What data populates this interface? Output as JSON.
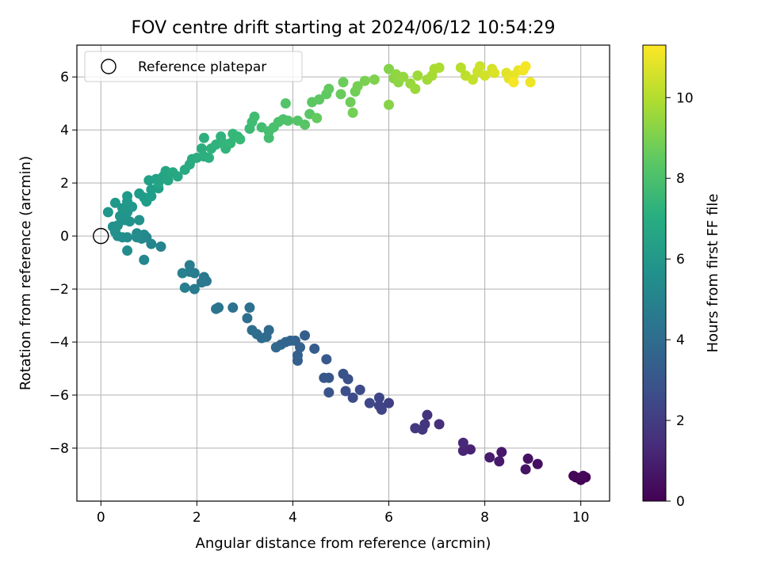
{
  "chart_data": {
    "type": "scatter",
    "title": "FOV centre drift starting at 2024/06/12 10:54:29",
    "xlabel": "Angular distance from reference (arcmin)",
    "ylabel": "Rotation from reference (arcmin)",
    "xlim": [
      -0.5,
      10.6
    ],
    "ylim": [
      -10.0,
      7.2
    ],
    "xticks": [
      0,
      2,
      4,
      6,
      8,
      10
    ],
    "yticks": [
      -8,
      -6,
      -4,
      -2,
      0,
      2,
      4,
      6
    ],
    "grid": true,
    "legend": {
      "placement": "upper-left",
      "entries": [
        "Reference platepar"
      ]
    },
    "reference_marker": {
      "x": 0,
      "y": 0
    },
    "colorbar": {
      "label": "Hours from first FF file",
      "range": [
        0,
        11.3
      ],
      "ticks": [
        0,
        2,
        4,
        6,
        8,
        10
      ],
      "colormap": "viridis"
    },
    "series": [
      {
        "encoding": [
          "x",
          "y",
          "hours"
        ],
        "points": [
          [
            10.1,
            -9.1,
            0.0
          ],
          [
            10.0,
            -9.2,
            0.05
          ],
          [
            9.9,
            -9.1,
            0.1
          ],
          [
            9.85,
            -9.05,
            0.15
          ],
          [
            10.05,
            -9.05,
            0.2
          ],
          [
            9.1,
            -8.6,
            0.45
          ],
          [
            8.9,
            -8.4,
            0.55
          ],
          [
            8.85,
            -8.8,
            0.6
          ],
          [
            8.35,
            -8.15,
            0.75
          ],
          [
            8.3,
            -8.5,
            0.8
          ],
          [
            8.1,
            -8.35,
            0.9
          ],
          [
            7.7,
            -8.05,
            1.1
          ],
          [
            7.55,
            -8.1,
            1.15
          ],
          [
            7.55,
            -7.8,
            1.25
          ],
          [
            7.05,
            -7.1,
            1.55
          ],
          [
            6.8,
            -6.75,
            1.65
          ],
          [
            6.75,
            -7.1,
            1.75
          ],
          [
            6.7,
            -7.3,
            1.8
          ],
          [
            6.55,
            -7.25,
            1.9
          ],
          [
            6.0,
            -6.3,
            2.15
          ],
          [
            5.8,
            -6.4,
            2.25
          ],
          [
            5.85,
            -6.55,
            2.3
          ],
          [
            5.8,
            -6.1,
            2.35
          ],
          [
            5.6,
            -6.3,
            2.45
          ],
          [
            5.4,
            -5.8,
            2.55
          ],
          [
            5.25,
            -6.1,
            2.6
          ],
          [
            5.1,
            -5.85,
            2.7
          ],
          [
            5.15,
            -5.4,
            2.75
          ],
          [
            5.05,
            -5.2,
            2.85
          ],
          [
            4.75,
            -5.9,
            2.95
          ],
          [
            4.75,
            -5.35,
            3.0
          ],
          [
            4.65,
            -5.35,
            3.05
          ],
          [
            4.7,
            -4.65,
            3.15
          ],
          [
            4.45,
            -4.25,
            3.25
          ],
          [
            4.25,
            -3.75,
            3.35
          ],
          [
            4.1,
            -4.7,
            3.4
          ],
          [
            4.1,
            -4.5,
            3.45
          ],
          [
            4.15,
            -4.2,
            3.5
          ],
          [
            4.05,
            -3.95,
            3.55
          ],
          [
            3.95,
            -3.95,
            3.6
          ],
          [
            3.85,
            -4.0,
            3.65
          ],
          [
            3.75,
            -4.1,
            3.7
          ],
          [
            3.65,
            -4.2,
            3.75
          ],
          [
            3.5,
            -3.55,
            3.85
          ],
          [
            3.45,
            -3.8,
            3.9
          ],
          [
            3.35,
            -3.85,
            3.95
          ],
          [
            3.25,
            -3.7,
            4.0
          ],
          [
            3.15,
            -3.55,
            4.05
          ],
          [
            3.05,
            -3.1,
            4.1
          ],
          [
            3.1,
            -2.7,
            4.15
          ],
          [
            2.75,
            -2.7,
            4.25
          ],
          [
            2.45,
            -2.7,
            4.3
          ],
          [
            2.4,
            -2.75,
            4.35
          ],
          [
            2.2,
            -1.7,
            4.5
          ],
          [
            2.15,
            -1.55,
            4.55
          ],
          [
            2.1,
            -1.75,
            4.6
          ],
          [
            1.95,
            -1.4,
            4.7
          ],
          [
            1.95,
            -2.0,
            4.75
          ],
          [
            1.85,
            -1.35,
            4.8
          ],
          [
            1.85,
            -1.1,
            4.85
          ],
          [
            1.75,
            -1.95,
            4.9
          ],
          [
            1.7,
            -1.4,
            4.95
          ],
          [
            1.25,
            -0.4,
            5.1
          ],
          [
            1.05,
            -0.3,
            5.15
          ],
          [
            0.9,
            -0.9,
            5.2
          ],
          [
            0.85,
            -0.1,
            5.25
          ],
          [
            0.95,
            -0.05,
            5.3
          ],
          [
            0.9,
            0.05,
            5.35
          ],
          [
            0.75,
            0.1,
            5.4
          ],
          [
            0.75,
            -0.05,
            5.45
          ],
          [
            0.55,
            -0.55,
            5.5
          ],
          [
            0.55,
            -0.05,
            5.55
          ],
          [
            0.45,
            -0.05,
            5.6
          ],
          [
            0.35,
            0.0,
            5.62
          ],
          [
            0.3,
            0.15,
            5.65
          ],
          [
            0.25,
            0.35,
            5.7
          ],
          [
            0.35,
            0.4,
            5.72
          ],
          [
            0.8,
            0.6,
            5.75
          ],
          [
            0.6,
            0.55,
            5.78
          ],
          [
            0.5,
            0.6,
            5.8
          ],
          [
            0.4,
            0.75,
            5.85
          ],
          [
            0.55,
            0.9,
            5.88
          ],
          [
            0.15,
            0.9,
            5.9
          ],
          [
            0.45,
            1.05,
            5.95
          ],
          [
            0.65,
            1.1,
            6.0
          ],
          [
            0.3,
            1.25,
            6.05
          ],
          [
            0.55,
            1.3,
            6.1
          ],
          [
            0.55,
            1.5,
            6.12
          ],
          [
            0.8,
            1.6,
            6.15
          ],
          [
            0.9,
            1.45,
            6.2
          ],
          [
            0.95,
            1.3,
            6.25
          ],
          [
            1.05,
            1.5,
            6.3
          ],
          [
            1.05,
            1.75,
            6.35
          ],
          [
            1.2,
            1.8,
            6.4
          ],
          [
            1.0,
            2.1,
            6.45
          ],
          [
            1.15,
            2.15,
            6.5
          ],
          [
            1.3,
            2.25,
            6.55
          ],
          [
            1.2,
            2.0,
            6.6
          ],
          [
            1.35,
            2.45,
            6.65
          ],
          [
            1.4,
            2.1,
            6.7
          ],
          [
            1.6,
            2.25,
            6.75
          ],
          [
            1.5,
            2.4,
            6.8
          ],
          [
            1.75,
            2.5,
            6.85
          ],
          [
            1.85,
            2.7,
            6.9
          ],
          [
            1.9,
            2.9,
            6.95
          ],
          [
            2.0,
            2.95,
            7.0
          ],
          [
            2.1,
            3.3,
            7.05
          ],
          [
            2.15,
            3.0,
            7.1
          ],
          [
            2.25,
            2.95,
            7.12
          ],
          [
            2.15,
            3.7,
            7.15
          ],
          [
            2.3,
            3.3,
            7.2
          ],
          [
            2.4,
            3.45,
            7.25
          ],
          [
            2.5,
            3.75,
            7.3
          ],
          [
            2.6,
            3.3,
            7.35
          ],
          [
            2.55,
            3.5,
            7.4
          ],
          [
            2.7,
            3.5,
            7.45
          ],
          [
            2.85,
            3.75,
            7.5
          ],
          [
            2.75,
            3.85,
            7.55
          ],
          [
            2.9,
            3.65,
            7.6
          ],
          [
            3.1,
            4.05,
            7.7
          ],
          [
            3.15,
            4.3,
            7.75
          ],
          [
            3.2,
            4.5,
            7.8
          ],
          [
            3.35,
            4.1,
            7.85
          ],
          [
            3.5,
            3.7,
            7.9
          ],
          [
            3.5,
            3.95,
            7.95
          ],
          [
            3.6,
            4.1,
            8.0
          ],
          [
            3.7,
            4.3,
            8.05
          ],
          [
            3.8,
            4.4,
            8.1
          ],
          [
            3.9,
            4.35,
            8.15
          ],
          [
            3.85,
            5.0,
            8.2
          ],
          [
            4.1,
            4.35,
            8.25
          ],
          [
            4.25,
            4.2,
            8.3
          ],
          [
            4.35,
            4.6,
            8.35
          ],
          [
            4.4,
            5.05,
            8.4
          ],
          [
            4.55,
            5.15,
            8.45
          ],
          [
            4.7,
            5.35,
            8.5
          ],
          [
            4.75,
            5.55,
            8.55
          ],
          [
            4.5,
            4.45,
            8.6
          ],
          [
            5.0,
            5.35,
            8.7
          ],
          [
            5.05,
            5.8,
            8.75
          ],
          [
            5.2,
            5.05,
            8.8
          ],
          [
            5.3,
            5.45,
            8.85
          ],
          [
            5.25,
            4.65,
            8.9
          ],
          [
            5.35,
            5.65,
            8.95
          ],
          [
            5.5,
            5.85,
            9.0
          ],
          [
            5.7,
            5.9,
            9.1
          ],
          [
            6.0,
            6.3,
            9.2
          ],
          [
            6.0,
            4.95,
            9.25
          ],
          [
            6.1,
            5.95,
            9.3
          ],
          [
            6.2,
            5.8,
            9.35
          ],
          [
            6.15,
            6.1,
            9.4
          ],
          [
            6.3,
            6.0,
            9.5
          ],
          [
            6.45,
            5.75,
            9.55
          ],
          [
            6.55,
            5.55,
            9.6
          ],
          [
            6.6,
            6.05,
            9.65
          ],
          [
            6.8,
            5.9,
            9.7
          ],
          [
            6.9,
            6.05,
            9.8
          ],
          [
            6.95,
            6.3,
            9.85
          ],
          [
            7.05,
            6.35,
            9.9
          ],
          [
            7.5,
            6.35,
            10.1
          ],
          [
            7.6,
            6.05,
            10.2
          ],
          [
            7.75,
            5.9,
            10.3
          ],
          [
            7.85,
            6.2,
            10.4
          ],
          [
            7.9,
            6.4,
            10.45
          ],
          [
            8.0,
            6.05,
            10.55
          ],
          [
            8.15,
            6.3,
            10.6
          ],
          [
            8.2,
            6.15,
            10.7
          ],
          [
            8.45,
            6.15,
            10.8
          ],
          [
            8.5,
            5.95,
            10.85
          ],
          [
            8.6,
            6.05,
            10.9
          ],
          [
            8.7,
            6.25,
            10.95
          ],
          [
            8.95,
            5.8,
            11.05
          ],
          [
            8.8,
            6.25,
            11.1
          ],
          [
            8.85,
            6.4,
            11.15
          ],
          [
            8.6,
            5.8,
            11.2
          ]
        ]
      }
    ]
  }
}
